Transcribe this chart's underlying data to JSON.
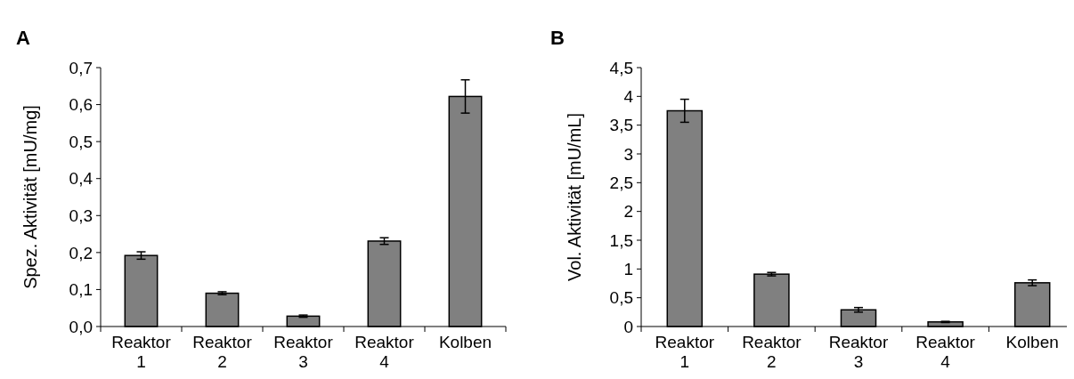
{
  "chart_data": [
    {
      "type": "bar",
      "title": "A",
      "ylabel": "Spez. Aktivität [mU/mg]",
      "categories": [
        "Reaktor 1",
        "Reaktor 2",
        "Reaktor 3",
        "Reaktor 4",
        "Kolben"
      ],
      "values": [
        0.192,
        0.09,
        0.028,
        0.231,
        0.622
      ],
      "errors": [
        0.01,
        0.004,
        0.003,
        0.009,
        0.045
      ],
      "color": "#808080",
      "ylim": [
        0,
        0.7
      ],
      "yticks": [
        {
          "value": 0,
          "label": "0,0"
        },
        {
          "value": 0.1,
          "label": "0,1"
        },
        {
          "value": 0.2,
          "label": "0,2"
        },
        {
          "value": 0.3,
          "label": "0,3"
        },
        {
          "value": 0.4,
          "label": "0,4"
        },
        {
          "value": 0.5,
          "label": "0,5"
        },
        {
          "value": 0.6,
          "label": "0,6"
        },
        {
          "value": 0.7,
          "label": "0,7"
        }
      ]
    },
    {
      "type": "bar",
      "title": "B",
      "ylabel": "Vol. Aktivität [mU/mL]",
      "categories": [
        "Reaktor 1",
        "Reaktor 2",
        "Reaktor 3",
        "Reaktor 4",
        "Kolben"
      ],
      "values": [
        3.75,
        0.91,
        0.29,
        0.08,
        0.76
      ],
      "errors": [
        0.2,
        0.03,
        0.04,
        0.01,
        0.05
      ],
      "color": "#808080",
      "ylim": [
        0,
        4.5
      ],
      "yticks": [
        0,
        {
          "value": 0.5,
          "label": "0,5"
        },
        1,
        {
          "value": 1.5,
          "label": "1,5"
        },
        2,
        {
          "value": 2.5,
          "label": "2,5"
        },
        3,
        {
          "value": 3.5,
          "label": "3,5"
        },
        4,
        {
          "value": 4.5,
          "label": "4,5"
        }
      ]
    }
  ]
}
